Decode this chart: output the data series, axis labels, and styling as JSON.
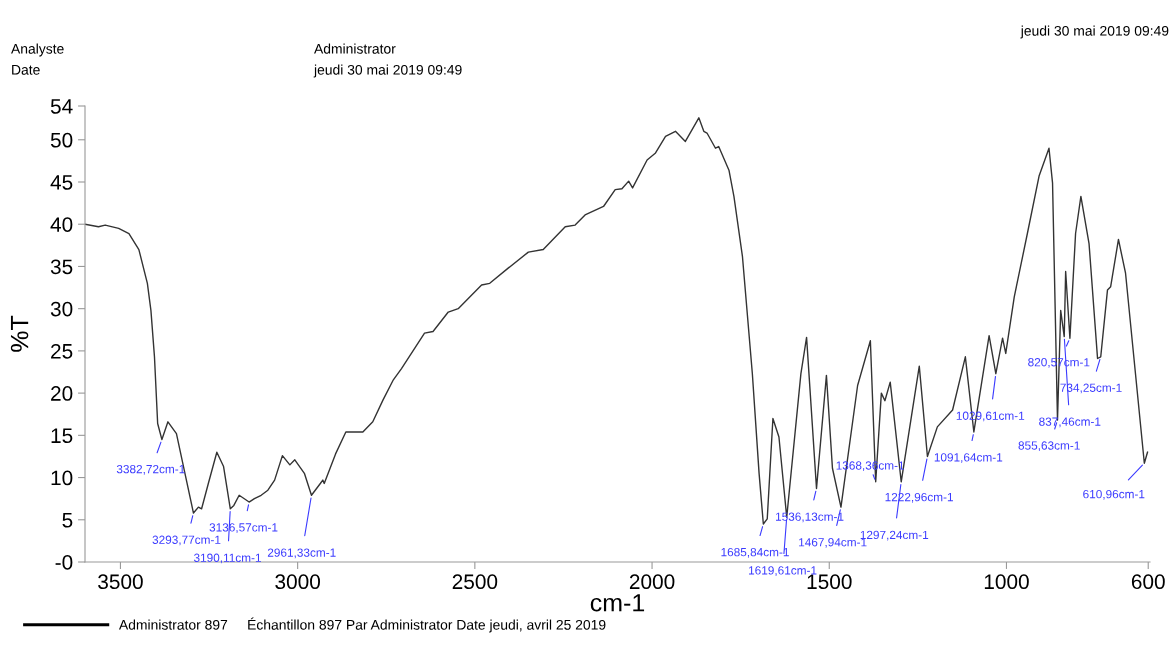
{
  "chart_data": {
    "type": "line",
    "xlabel": "cm-1",
    "ylabel": "%T",
    "xlim": [
      3600,
      595
    ],
    "xticks": [
      3500,
      3000,
      2500,
      2000,
      1500,
      1000,
      600
    ],
    "ylim": [
      0,
      54
    ],
    "yticks": [
      {
        "value": 0,
        "label": "-0"
      },
      5,
      10,
      15,
      20,
      25,
      30,
      35,
      40,
      45,
      50,
      54
    ],
    "grid": false,
    "legend": "bottom",
    "marker": "none",
    "line_style": "solid",
    "series": [
      {
        "name": "Administrator 897     Échantillon 897 Par Administrator Date jeudi, avril 25 2019",
        "color": "#333333",
        "x": [
          3600,
          3562,
          3543,
          3505,
          3476,
          3448,
          3424,
          3414,
          3404,
          3395,
          3383,
          3366,
          3342,
          3318,
          3294,
          3280,
          3271,
          3252,
          3228,
          3209,
          3190,
          3180,
          3165,
          3137,
          3122,
          3103,
          3084,
          3065,
          3043,
          3022,
          3008,
          2981,
          2961,
          2936,
          2929,
          2925,
          2893,
          2864,
          2816,
          2788,
          2759,
          2731,
          2707,
          2642,
          2618,
          2575,
          2547,
          2481,
          2458,
          2406,
          2349,
          2307,
          2245,
          2217,
          2189,
          2137,
          2104,
          2085,
          2066,
          2055,
          2014,
          1991,
          1962,
          1934,
          1906,
          1868,
          1854,
          1845,
          1821,
          1812,
          1783,
          1769,
          1745,
          1717,
          1698,
          1686,
          1675,
          1659,
          1642,
          1620,
          1580,
          1564,
          1536,
          1508,
          1491,
          1467,
          1420,
          1384,
          1369,
          1353,
          1343,
          1328,
          1297,
          1246,
          1223,
          1195,
          1152,
          1116,
          1092,
          1049,
          1030,
          1011,
          1002,
          978,
          941,
          908,
          880,
          870,
          856,
          847,
          837,
          833,
          821,
          805,
          790,
          767,
          743,
          734,
          715,
          706,
          684,
          664,
          611,
          602
        ],
        "values": [
          40.0,
          39.7,
          39.9,
          39.5,
          38.9,
          37.0,
          33.0,
          29.8,
          24.3,
          16.4,
          14.5,
          16.6,
          15.2,
          10.5,
          5.8,
          6.5,
          6.3,
          9.3,
          13.0,
          11.3,
          6.3,
          6.7,
          7.9,
          7.1,
          7.5,
          7.9,
          8.5,
          9.7,
          12.6,
          11.5,
          12.1,
          10.5,
          7.9,
          9.3,
          9.7,
          9.3,
          12.8,
          15.4,
          15.4,
          16.6,
          19.2,
          21.5,
          22.9,
          27.1,
          27.3,
          29.6,
          30.0,
          32.8,
          33.0,
          34.8,
          36.7,
          37.0,
          39.7,
          39.9,
          41.1,
          42.1,
          44.1,
          44.2,
          45.1,
          44.3,
          47.6,
          48.4,
          50.4,
          51.0,
          49.8,
          52.6,
          51.0,
          50.8,
          49.0,
          49.2,
          46.4,
          43.3,
          36.2,
          22.3,
          10.5,
          4.5,
          5.1,
          17.0,
          14.8,
          5.3,
          22.3,
          26.6,
          8.7,
          22.1,
          11.1,
          6.5,
          20.9,
          26.2,
          9.5,
          20.0,
          19.1,
          21.3,
          9.5,
          23.2,
          12.5,
          16.0,
          18.0,
          24.3,
          15.4,
          26.8,
          22.3,
          26.5,
          24.7,
          31.4,
          38.9,
          45.7,
          49.0,
          44.9,
          16.8,
          29.8,
          26.7,
          34.4,
          26.5,
          38.9,
          43.3,
          37.7,
          24.1,
          24.3,
          32.2,
          32.6,
          38.2,
          34.2,
          11.7,
          13.0
        ]
      }
    ],
    "annotations": [
      "Analyste",
      "Administrator",
      "Date",
      "jeudi 30 mai 2019 09:49",
      "jeudi 30 mai 2019 09:49",
      {
        "text": "3382,72cm-1",
        "x": 3383,
        "y": 14.5
      },
      {
        "text": "3293,77cm-1",
        "x": 3294,
        "y": 5.8
      },
      {
        "text": "3190,11cm-1",
        "x": 3190,
        "y": 6.3
      },
      {
        "text": "3136,57cm-1",
        "x": 3137,
        "y": 7.1
      },
      {
        "text": "2961,33cm-1",
        "x": 2961,
        "y": 7.9
      },
      {
        "text": "1685,84cm-1",
        "x": 1686,
        "y": 4.5
      },
      {
        "text": "1619,61cm-1",
        "x": 1620,
        "y": 5.3
      },
      {
        "text": "1536,13cm-1",
        "x": 1536,
        "y": 8.7
      },
      {
        "text": "1467,94cm-1",
        "x": 1467,
        "y": 6.5
      },
      {
        "text": "1368,36cm-1",
        "x": 1369,
        "y": 9.5
      },
      {
        "text": "1297,24cm-1",
        "x": 1297,
        "y": 9.5
      },
      {
        "text": "1222,96cm-1",
        "x": 1223,
        "y": 12.5
      },
      {
        "text": "1091,64cm-1",
        "x": 1092,
        "y": 15.4
      },
      {
        "text": "1029,61cm-1",
        "x": 1030,
        "y": 22.3
      },
      {
        "text": "855,63cm-1",
        "x": 856,
        "y": 16.8
      },
      {
        "text": "837,46cm-1",
        "x": 837,
        "y": 26.7
      },
      {
        "text": "820,57cm-1",
        "x": 821,
        "y": 26.5
      },
      {
        "text": "734,25cm-1",
        "x": 734,
        "y": 24.3
      },
      {
        "text": "610,96cm-1",
        "x": 611,
        "y": 11.7
      }
    ]
  }
}
